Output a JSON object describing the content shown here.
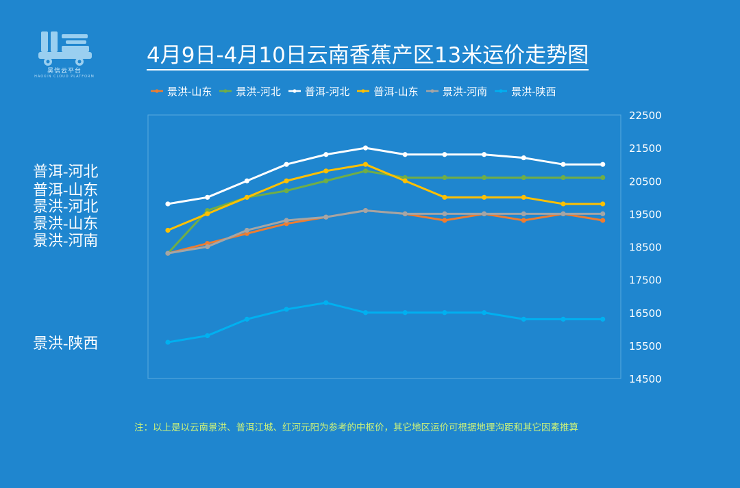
{
  "logo": {
    "icon": "truck-logo-icon",
    "name": "昊信云平台",
    "subtitle": "HAOXIN CLOUD PLATFORM"
  },
  "chart_data": {
    "type": "line",
    "title": "4月9日-4月10日云南香蕉产区13米运价走势图",
    "xlabel": "",
    "ylabel": "",
    "x": [
      1,
      2,
      3,
      4,
      5,
      6,
      7,
      8,
      9,
      10,
      11,
      12
    ],
    "ylim": [
      14500,
      22500
    ],
    "yticks": [
      22500,
      21500,
      20500,
      19500,
      18500,
      17500,
      16500,
      15500,
      14500
    ],
    "y_axis_position": "right",
    "legend_position": "top",
    "grid": false,
    "series": [
      {
        "name": "景洪-山东",
        "color": "#ed7d31",
        "values": [
          18300,
          18600,
          18900,
          19200,
          19400,
          19600,
          19500,
          19300,
          19500,
          19300,
          19500,
          19300
        ]
      },
      {
        "name": "景洪-河北",
        "color": "#70ad47",
        "values": [
          18300,
          19600,
          20000,
          20200,
          20500,
          20800,
          20600,
          20600,
          20600,
          20600,
          20600,
          20600
        ]
      },
      {
        "name": "普洱-河北",
        "color": "#ffffff",
        "values": [
          19800,
          20000,
          20500,
          21000,
          21300,
          21500,
          21300,
          21300,
          21300,
          21200,
          21000,
          21000
        ]
      },
      {
        "name": "普洱-山东",
        "color": "#ffc000",
        "values": [
          19000,
          19500,
          20000,
          20500,
          20800,
          21000,
          20500,
          20000,
          20000,
          20000,
          19800,
          19800
        ]
      },
      {
        "name": "景洪-河南",
        "color": "#a5a5a5",
        "values": [
          18300,
          18500,
          19000,
          19300,
          19400,
          19600,
          19500,
          19500,
          19500,
          19500,
          19500,
          19500
        ]
      },
      {
        "name": "景洪-陕西",
        "color": "#00b0f0",
        "values": [
          15600,
          15800,
          16300,
          16600,
          16800,
          16500,
          16500,
          16500,
          16500,
          16300,
          16300,
          16300
        ]
      }
    ]
  },
  "side_labels": [
    {
      "text": "普洱-河北",
      "value": 20850
    },
    {
      "text": "普洱-山东",
      "value": 20300
    },
    {
      "text": "景洪-河北",
      "value": 19800
    },
    {
      "text": "景洪-山东",
      "value": 19280
    },
    {
      "text": "景洪-河南",
      "value": 18750
    },
    {
      "text": "景洪-陕西",
      "value": 15650
    }
  ],
  "footnote": "注：以上是以云南景洪、普洱江城、红河元阳为参考的中枢价，其它地区运价可根据地理沟距和其它因素推算"
}
